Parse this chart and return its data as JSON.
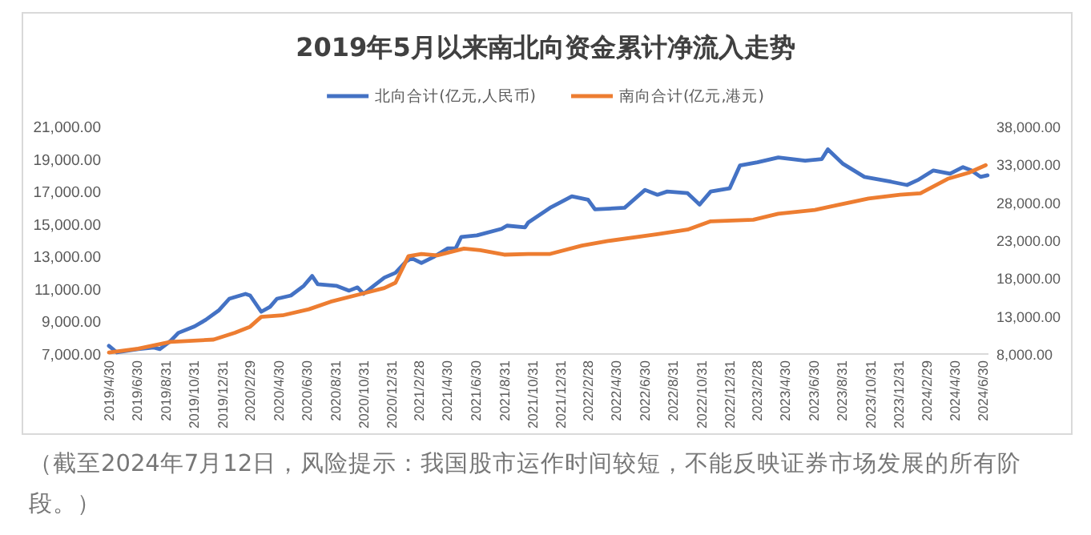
{
  "chart_data": {
    "type": "line",
    "title": "2019年5月以来南北向资金累计净流入走势",
    "legend": "top",
    "line_style": "solid",
    "marker": "none",
    "grid": false,
    "annotations": [
      "（截至2024年7月12日，风险提示：我国股市运作时间较短，不能反映证券市场发展的所有阶段。）"
    ],
    "xlim": [
      "2019-04-30",
      "2024-07-12"
    ],
    "xticks": [
      {
        "value": "2019-04-30",
        "label": "2019/4/30"
      },
      {
        "value": "2019-06-30",
        "label": "2019/6/30"
      },
      {
        "value": "2019-08-31",
        "label": "2019/8/31"
      },
      {
        "value": "2019-10-31",
        "label": "2019/10/31"
      },
      {
        "value": "2019-12-31",
        "label": "2019/12/31"
      },
      {
        "value": "2020-02-29",
        "label": "2020/2/29"
      },
      {
        "value": "2020-04-30",
        "label": "2020/4/30"
      },
      {
        "value": "2020-06-30",
        "label": "2020/6/30"
      },
      {
        "value": "2020-08-31",
        "label": "2020/8/31"
      },
      {
        "value": "2020-10-31",
        "label": "2020/10/31"
      },
      {
        "value": "2020-12-31",
        "label": "2020/12/31"
      },
      {
        "value": "2021-02-28",
        "label": "2021/2/28"
      },
      {
        "value": "2021-04-30",
        "label": "2021/4/30"
      },
      {
        "value": "2021-06-30",
        "label": "2021/6/30"
      },
      {
        "value": "2021-08-31",
        "label": "2021/8/31"
      },
      {
        "value": "2021-10-31",
        "label": "2021/10/31"
      },
      {
        "value": "2021-12-31",
        "label": "2021/12/31"
      },
      {
        "value": "2022-02-28",
        "label": "2022/2/28"
      },
      {
        "value": "2022-04-30",
        "label": "2022/4/30"
      },
      {
        "value": "2022-06-30",
        "label": "2022/6/30"
      },
      {
        "value": "2022-08-31",
        "label": "2022/8/31"
      },
      {
        "value": "2022-10-31",
        "label": "2022/10/31"
      },
      {
        "value": "2022-12-31",
        "label": "2022/12/31"
      },
      {
        "value": "2023-02-28",
        "label": "2023/2/28"
      },
      {
        "value": "2023-04-30",
        "label": "2023/4/30"
      },
      {
        "value": "2023-06-30",
        "label": "2023/6/30"
      },
      {
        "value": "2023-08-31",
        "label": "2023/8/31"
      },
      {
        "value": "2023-10-31",
        "label": "2023/10/31"
      },
      {
        "value": "2023-12-31",
        "label": "2023/12/31"
      },
      {
        "value": "2024-02-29",
        "label": "2024/2/29"
      },
      {
        "value": "2024-04-30",
        "label": "2024/4/30"
      },
      {
        "value": "2024-06-30",
        "label": "2024/6/30"
      }
    ],
    "ylim": [
      7000,
      21000
    ],
    "yticks": [
      {
        "value": 7000,
        "label": "7,000.00"
      },
      {
        "value": 9000,
        "label": "9,000.00"
      },
      {
        "value": 11000,
        "label": "11,000.00"
      },
      {
        "value": 13000,
        "label": "13,000.00"
      },
      {
        "value": 15000,
        "label": "15,000.00"
      },
      {
        "value": 17000,
        "label": "17,000.00"
      },
      {
        "value": 19000,
        "label": "19,000.00"
      },
      {
        "value": 21000,
        "label": "21,000.00"
      }
    ],
    "y2lim": [
      8000,
      38000
    ],
    "y2ticks": [
      {
        "value": 8000,
        "label": "8,000.00"
      },
      {
        "value": 13000,
        "label": "13,000.00"
      },
      {
        "value": 18000,
        "label": "18,000.00"
      },
      {
        "value": 23000,
        "label": "23,000.00"
      },
      {
        "value": 28000,
        "label": "28,000.00"
      },
      {
        "value": 33000,
        "label": "33,000.00"
      },
      {
        "value": 38000,
        "label": "38,000.00"
      }
    ],
    "series": [
      {
        "name": "北向合计(亿元,人民币)",
        "color": "#4472c4",
        "axis": "y",
        "x": [
          "2019-04-30",
          "2019-05-17",
          "2019-07-02",
          "2019-08-05",
          "2019-08-18",
          "2019-09-10",
          "2019-09-27",
          "2019-11-01",
          "2019-11-25",
          "2019-12-24",
          "2020-01-15",
          "2020-02-19",
          "2020-02-29",
          "2020-03-24",
          "2020-04-12",
          "2020-04-27",
          "2020-05-27",
          "2020-06-24",
          "2020-07-12",
          "2020-07-24",
          "2020-09-02",
          "2020-09-30",
          "2020-10-18",
          "2020-10-31",
          "2020-11-22",
          "2020-12-15",
          "2021-01-08",
          "2021-01-31",
          "2021-02-12",
          "2021-03-05",
          "2021-04-02",
          "2021-05-01",
          "2021-05-18",
          "2021-05-30",
          "2021-07-03",
          "2021-08-25",
          "2021-09-06",
          "2021-10-15",
          "2021-10-22",
          "2021-12-08",
          "2022-01-24",
          "2022-02-28",
          "2022-03-15",
          "2022-05-18",
          "2022-07-01",
          "2022-07-28",
          "2022-08-18",
          "2022-10-01",
          "2022-10-27",
          "2022-11-20",
          "2022-12-31",
          "2023-01-22",
          "2023-03-01",
          "2023-04-15",
          "2023-06-12",
          "2023-07-18",
          "2023-07-31",
          "2023-09-02",
          "2023-10-18",
          "2023-12-15",
          "2024-01-18",
          "2024-02-10",
          "2024-03-15",
          "2024-04-20",
          "2024-05-18",
          "2024-06-05",
          "2024-06-25",
          "2024-07-10"
        ],
        "values": [
          7500,
          7100,
          7300,
          7400,
          7300,
          7800,
          8300,
          8700,
          9100,
          9700,
          10400,
          10700,
          10600,
          9600,
          9900,
          10400,
          10600,
          11200,
          11800,
          11300,
          11200,
          10900,
          11100,
          10700,
          11200,
          11700,
          12000,
          12700,
          12900,
          12600,
          13000,
          13500,
          13500,
          14200,
          14300,
          14700,
          14900,
          14800,
          15100,
          16000,
          16700,
          16500,
          15900,
          16000,
          17100,
          16800,
          17000,
          16900,
          16200,
          17000,
          17200,
          18600,
          18800,
          19100,
          18900,
          19000,
          19600,
          18700,
          17900,
          17600,
          17400,
          17700,
          18300,
          18100,
          18500,
          18300,
          17900,
          18000
        ]
      },
      {
        "name": "南向合计(亿元,港元)",
        "color": "#ed7d31",
        "axis": "y2",
        "x": [
          "2019-04-30",
          "2019-07-02",
          "2019-09-10",
          "2019-12-12",
          "2020-01-27",
          "2020-02-29",
          "2020-03-24",
          "2020-05-09",
          "2020-07-05",
          "2020-08-21",
          "2020-10-31",
          "2020-12-15",
          "2021-01-08",
          "2021-02-05",
          "2021-03-05",
          "2021-04-08",
          "2021-06-05",
          "2021-07-10",
          "2021-08-31",
          "2021-10-22",
          "2021-12-08",
          "2022-02-15",
          "2022-04-12",
          "2022-07-28",
          "2022-10-01",
          "2022-11-20",
          "2023-02-20",
          "2023-04-15",
          "2023-07-03",
          "2023-08-18",
          "2023-10-27",
          "2024-01-03",
          "2024-02-16",
          "2024-04-15",
          "2024-05-30",
          "2024-07-06"
        ],
        "values": [
          8200,
          8700,
          9600,
          9900,
          10800,
          11600,
          12900,
          13100,
          13900,
          14900,
          16000,
          16700,
          17400,
          20900,
          21200,
          21000,
          21900,
          21700,
          21100,
          21200,
          21200,
          22300,
          22900,
          23800,
          24400,
          25500,
          25700,
          26500,
          27000,
          27600,
          28500,
          29000,
          29200,
          31100,
          31900,
          32900
        ]
      }
    ]
  }
}
